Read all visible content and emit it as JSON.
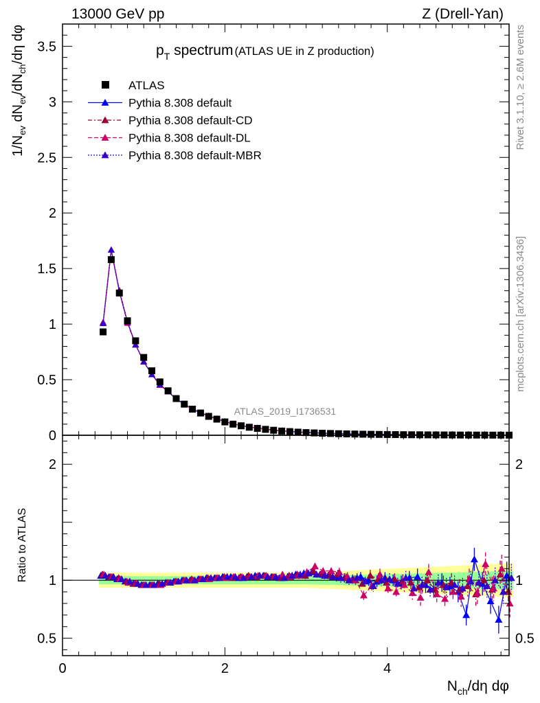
{
  "header": {
    "left": "13000 GeV pp",
    "right": "Z (Drell-Yan)"
  },
  "side_text": {
    "top": "Rivet 3.1.10, ≥ 2.6M events",
    "bottom": "mcplots.cern.ch [arXiv:1306.3436]"
  },
  "chart_data": {
    "type": "line",
    "title": {
      "main": "p",
      "sub": "T",
      "rest": " spectrum",
      "paren": "(ATLAS UE in Z production)"
    },
    "analysis_tag": "ATLAS_2019_I1736531",
    "xlabel": {
      "a": "N",
      "sub": "ch",
      "b": "/dη dφ"
    },
    "ylabel": {
      "p1": "1/N",
      "s1": "ev",
      "p2": " dN",
      "s2": "ev",
      "p3": "/dN",
      "s3": "ch",
      "p4": "/dη dφ"
    },
    "ratio_ylabel": "Ratio to ATLAS",
    "xlim": [
      0,
      5.5
    ],
    "ylim": [
      0,
      3.7
    ],
    "ratio_ylim": [
      0.35,
      2.25
    ],
    "x_ticks": [
      "0",
      "2",
      "4"
    ],
    "y_ticks": [
      "0",
      "0.5",
      "1",
      "1.5",
      "2",
      "2.5",
      "3",
      "3.5"
    ],
    "ratio_ticks": [
      "0.5",
      "1",
      "2"
    ],
    "x": [
      0.5,
      0.6,
      0.7,
      0.8,
      0.9,
      1.0,
      1.1,
      1.2,
      1.3,
      1.4,
      1.5,
      1.6,
      1.7,
      1.8,
      1.9,
      2.0,
      2.1,
      2.2,
      2.3,
      2.4,
      2.5,
      2.6,
      2.7,
      2.8,
      2.9,
      3.0,
      3.1,
      3.2,
      3.3,
      3.4,
      3.5,
      3.6,
      3.7,
      3.8,
      3.9,
      4.0,
      4.1,
      4.2,
      4.3,
      4.4,
      4.5,
      4.6,
      4.7,
      4.8,
      4.9,
      5.0,
      5.1,
      5.2,
      5.3,
      5.4,
      5.5
    ],
    "data": {
      "name": "ATLAS",
      "values": [
        0.93,
        1.58,
        1.28,
        1.03,
        0.85,
        0.7,
        0.58,
        0.48,
        0.4,
        0.33,
        0.28,
        0.235,
        0.2,
        0.17,
        0.145,
        0.12,
        0.1,
        0.085,
        0.072,
        0.062,
        0.053,
        0.045,
        0.038,
        0.033,
        0.028,
        0.024,
        0.021,
        0.018,
        0.016,
        0.014,
        0.012,
        0.011,
        0.0095,
        0.0085,
        0.0075,
        0.0066,
        0.0058,
        0.0051,
        0.0045,
        0.004,
        0.0035,
        0.0031,
        0.0027,
        0.0024,
        0.0021,
        0.0019,
        0.0017,
        0.0015,
        0.0013,
        0.0012,
        0.0011
      ],
      "band_inner": 0.035,
      "band_outer": 0.065
    },
    "series": [
      {
        "name": "Pythia 8.308 default",
        "color": "#0000ff",
        "style": "solid",
        "ratio": [
          1.04,
          1.03,
          1.01,
          0.99,
          0.97,
          0.96,
          0.96,
          0.97,
          0.98,
          0.99,
          1.0,
          1.0,
          1.01,
          1.02,
          1.02,
          1.03,
          1.03,
          1.02,
          1.03,
          1.04,
          1.04,
          1.03,
          1.02,
          1.03,
          1.05,
          1.06,
          1.07,
          1.05,
          1.04,
          1.03,
          1.02,
          1.01,
          1.03,
          1.0,
          0.99,
          1.02,
          1.0,
          0.98,
          1.02,
          1.03,
          0.96,
          0.92,
          0.98,
          0.95,
          0.9,
          0.7,
          1.18,
          0.97,
          0.82,
          0.66,
          1.04
        ],
        "err": [
          0.02,
          0.01,
          0.01,
          0.01,
          0.01,
          0.01,
          0.01,
          0.01,
          0.01,
          0.01,
          0.01,
          0.01,
          0.01,
          0.01,
          0.02,
          0.02,
          0.02,
          0.02,
          0.02,
          0.02,
          0.02,
          0.02,
          0.02,
          0.03,
          0.03,
          0.03,
          0.03,
          0.03,
          0.03,
          0.04,
          0.04,
          0.04,
          0.04,
          0.05,
          0.05,
          0.05,
          0.05,
          0.06,
          0.06,
          0.07,
          0.07,
          0.07,
          0.08,
          0.08,
          0.09,
          0.09,
          0.1,
          0.1,
          0.11,
          0.12,
          0.12
        ]
      },
      {
        "name": "Pythia 8.308 default-CD",
        "color": "#990033",
        "style": "dashdot",
        "ratio": [
          1.05,
          1.03,
          1.02,
          0.99,
          0.97,
          0.96,
          0.96,
          0.97,
          0.98,
          0.99,
          1.0,
          1.01,
          1.01,
          1.02,
          1.02,
          1.03,
          1.02,
          1.03,
          1.04,
          1.03,
          1.04,
          1.03,
          1.02,
          1.04,
          1.05,
          1.04,
          1.08,
          1.06,
          1.04,
          1.05,
          1.02,
          1.0,
          0.97,
          1.04,
          1.01,
          0.98,
          1.01,
          0.99,
          0.98,
          0.94,
          1.0,
          0.92,
          0.96,
          0.98,
          0.92,
          0.95,
          0.88,
          1.0,
          0.92,
          1.05,
          0.9
        ],
        "err": [
          0.02,
          0.01,
          0.01,
          0.01,
          0.01,
          0.01,
          0.01,
          0.01,
          0.01,
          0.01,
          0.01,
          0.01,
          0.01,
          0.01,
          0.02,
          0.02,
          0.02,
          0.02,
          0.02,
          0.02,
          0.02,
          0.02,
          0.02,
          0.03,
          0.03,
          0.03,
          0.03,
          0.03,
          0.03,
          0.04,
          0.04,
          0.04,
          0.04,
          0.05,
          0.05,
          0.05,
          0.05,
          0.06,
          0.06,
          0.07,
          0.07,
          0.07,
          0.08,
          0.08,
          0.09,
          0.09,
          0.1,
          0.1,
          0.11,
          0.12,
          0.12
        ]
      },
      {
        "name": "Pythia 8.308 default-DL",
        "color": "#cc0066",
        "style": "dashed",
        "ratio": [
          1.05,
          1.03,
          1.01,
          0.98,
          0.97,
          0.96,
          0.96,
          0.96,
          0.98,
          0.99,
          1.0,
          1.0,
          1.01,
          1.01,
          1.02,
          1.02,
          1.03,
          1.03,
          1.03,
          1.04,
          1.04,
          1.03,
          1.05,
          1.03,
          1.04,
          1.07,
          1.12,
          1.08,
          1.08,
          1.07,
          1.03,
          1.0,
          0.87,
          0.95,
          1.05,
          0.93,
          0.9,
          0.96,
          0.89,
          0.85,
          1.07,
          0.88,
          0.84,
          0.9,
          0.86,
          1.01,
          0.89,
          1.14,
          0.93,
          1.1,
          0.8
        ],
        "err": [
          0.02,
          0.01,
          0.01,
          0.01,
          0.01,
          0.01,
          0.01,
          0.01,
          0.01,
          0.01,
          0.01,
          0.01,
          0.01,
          0.01,
          0.02,
          0.02,
          0.02,
          0.02,
          0.02,
          0.02,
          0.02,
          0.02,
          0.02,
          0.03,
          0.03,
          0.03,
          0.03,
          0.03,
          0.03,
          0.04,
          0.04,
          0.04,
          0.04,
          0.05,
          0.05,
          0.05,
          0.05,
          0.06,
          0.06,
          0.07,
          0.07,
          0.07,
          0.08,
          0.08,
          0.09,
          0.09,
          0.1,
          0.1,
          0.11,
          0.12,
          0.12
        ]
      },
      {
        "name": "Pythia 8.308 default-MBR",
        "color": "#3300cc",
        "style": "dotted",
        "ratio": [
          1.04,
          1.03,
          1.01,
          0.99,
          0.97,
          0.96,
          0.96,
          0.97,
          0.98,
          0.99,
          1.0,
          1.0,
          1.01,
          1.02,
          1.02,
          1.03,
          1.03,
          1.02,
          1.03,
          1.04,
          1.03,
          1.03,
          1.02,
          1.04,
          1.05,
          1.06,
          1.05,
          1.04,
          1.03,
          1.02,
          1.0,
          1.02,
          0.99,
          0.95,
          1.0,
          1.01,
          0.97,
          1.02,
          0.93,
          0.96,
          0.92,
          0.98,
          0.94,
          0.96,
          0.93,
          0.99,
          0.98,
          0.95,
          1.0,
          0.9,
          1.02
        ],
        "err": [
          0.02,
          0.01,
          0.01,
          0.01,
          0.01,
          0.01,
          0.01,
          0.01,
          0.01,
          0.01,
          0.01,
          0.01,
          0.01,
          0.01,
          0.02,
          0.02,
          0.02,
          0.02,
          0.02,
          0.02,
          0.02,
          0.02,
          0.02,
          0.03,
          0.03,
          0.03,
          0.03,
          0.03,
          0.03,
          0.04,
          0.04,
          0.04,
          0.04,
          0.05,
          0.05,
          0.05,
          0.05,
          0.06,
          0.06,
          0.07,
          0.07,
          0.07,
          0.08,
          0.08,
          0.09,
          0.09,
          0.1,
          0.1,
          0.11,
          0.12,
          0.12
        ]
      }
    ],
    "main_shift": [
      0.04,
      0.04,
      0.0,
      0.0,
      -0.01,
      -0.01,
      -0.01,
      -0.01,
      0.0,
      0.0,
      0.0,
      0.0,
      0.0,
      0.0,
      0.0,
      0.0,
      0.0,
      0.0,
      0.0,
      0.0,
      0.0,
      0.0,
      0.0,
      0.0,
      0.0,
      0.0,
      0.0,
      0.0,
      0.0,
      0.0,
      0.0,
      0.0,
      0.0,
      0.0,
      0.0,
      0.0,
      0.0,
      0.0,
      0.0,
      0.0,
      0.0,
      0.0,
      0.0,
      0.0,
      0.0,
      0.0,
      0.0,
      0.0,
      0.0,
      0.0,
      0.0
    ],
    "legend_position": "top-left",
    "grid": false
  }
}
